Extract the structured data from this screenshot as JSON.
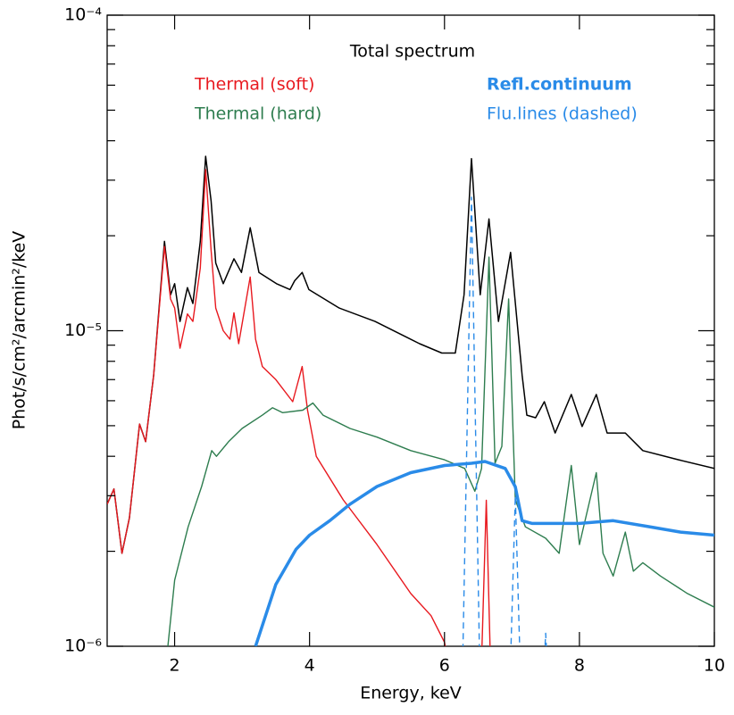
{
  "chart_data": {
    "type": "line",
    "xlabel": "Energy, keV",
    "ylabel": "Phot/s/cm²/arcmin²/keV",
    "xlim": [
      1,
      10
    ],
    "ylim": [
      1e-06,
      0.0001
    ],
    "log_y": true,
    "xticks": [
      2,
      4,
      6,
      8,
      10
    ],
    "yticks": [
      {
        "value": 1e-06,
        "label": "10⁻⁶"
      },
      {
        "value": 1e-05,
        "label": "10⁻⁵"
      },
      {
        "value": 0.0001,
        "label": "10⁻⁴"
      }
    ],
    "yminorticks": [
      2e-06,
      3e-06,
      4e-06,
      5e-06,
      6e-06,
      7e-06,
      8e-06,
      9e-06,
      2e-05,
      3e-05,
      4e-05,
      5e-05,
      6e-05,
      7e-05,
      8e-05,
      9e-05
    ],
    "series": [
      {
        "name": "Total spectrum",
        "color": "#000000",
        "width": 1.5,
        "dashed": false,
        "bold": false,
        "x": [
          1.0,
          1.1,
          1.22,
          1.33,
          1.48,
          1.57,
          1.69,
          1.85,
          1.94,
          2.0,
          2.08,
          2.19,
          2.27,
          2.38,
          2.46,
          2.54,
          2.61,
          2.72,
          2.88,
          2.99,
          3.12,
          3.25,
          3.51,
          3.71,
          3.78,
          3.89,
          3.99,
          4.44,
          4.97,
          5.37,
          5.63,
          5.96,
          6.16,
          6.29,
          6.4,
          6.53,
          6.66,
          6.8,
          6.98,
          7.15,
          7.22,
          7.35,
          7.48,
          7.64,
          7.88,
          8.04,
          8.25,
          8.41,
          8.68,
          8.94,
          9.47,
          10.0
        ],
        "values": [
          2.82e-06,
          3.15e-06,
          1.97e-06,
          2.55e-06,
          5.06e-06,
          4.45e-06,
          7.24e-06,
          1.92e-05,
          1.3e-05,
          1.41e-05,
          1.07e-05,
          1.37e-05,
          1.22e-05,
          1.92e-05,
          3.57e-05,
          2.58e-05,
          1.64e-05,
          1.41e-05,
          1.69e-05,
          1.53e-05,
          2.12e-05,
          1.53e-05,
          1.41e-05,
          1.35e-05,
          1.44e-05,
          1.53e-05,
          1.35e-05,
          1.18e-05,
          1.07e-05,
          9.7e-06,
          9.1e-06,
          8.5e-06,
          8.5e-06,
          1.3e-05,
          3.51e-05,
          1.3e-05,
          2.26e-05,
          1.07e-05,
          1.77e-05,
          7.24e-06,
          5.4e-06,
          5.3e-06,
          5.96e-06,
          4.74e-06,
          6.28e-06,
          4.97e-06,
          6.28e-06,
          4.74e-06,
          4.74e-06,
          4.17e-06,
          3.9e-06,
          3.66e-06
        ]
      },
      {
        "name": "Thermal (soft)",
        "color": "#e8191f",
        "width": 1.4,
        "dashed": false,
        "bold": false,
        "x": [
          1.0,
          1.1,
          1.22,
          1.33,
          1.48,
          1.57,
          1.69,
          1.85,
          1.94,
          2.0,
          2.08,
          2.19,
          2.27,
          2.38,
          2.46,
          2.54,
          2.61,
          2.72,
          2.82,
          2.88,
          2.95,
          3.12,
          3.2,
          3.3,
          3.5,
          3.75,
          3.89,
          3.97,
          4.1,
          4.5,
          5.0,
          5.5,
          5.8,
          6.0,
          6.05,
          6.55,
          6.62,
          6.68
        ],
        "values": [
          2.82e-06,
          3.15e-06,
          1.97e-06,
          2.55e-06,
          5.06e-06,
          4.45e-06,
          7.24e-06,
          1.85e-05,
          1.26e-05,
          1.18e-05,
          8.8e-06,
          1.13e-05,
          1.07e-05,
          1.58e-05,
          3.24e-05,
          1.8e-05,
          1.18e-05,
          1e-05,
          9.4e-06,
          1.14e-05,
          9.1e-06,
          1.48e-05,
          9.4e-06,
          7.7e-06,
          7e-06,
          5.96e-06,
          7.7e-06,
          5.6e-06,
          4e-06,
          2.91e-06,
          2.1e-06,
          1.47e-06,
          1.25e-06,
          1.03e-06,
          9e-07,
          9e-07,
          2.9e-06,
          9e-07
        ]
      },
      {
        "name": "Thermal (hard)",
        "color": "#2e7d4f",
        "width": 1.4,
        "dashed": false,
        "bold": false,
        "x": [
          1.9,
          2.0,
          2.2,
          2.4,
          2.55,
          2.62,
          2.8,
          3.0,
          3.3,
          3.45,
          3.6,
          3.9,
          4.05,
          4.2,
          4.6,
          5.0,
          5.5,
          6.0,
          6.3,
          6.45,
          6.55,
          6.66,
          6.75,
          6.85,
          6.95,
          7.05,
          7.2,
          7.5,
          7.7,
          7.88,
          8.0,
          8.25,
          8.35,
          8.5,
          8.68,
          8.8,
          8.94,
          9.2,
          9.6,
          10.0
        ],
        "values": [
          1e-06,
          1.62e-06,
          2.39e-06,
          3.21e-06,
          4.17e-06,
          4e-06,
          4.45e-06,
          4.9e-06,
          5.4e-06,
          5.7e-06,
          5.5e-06,
          5.6e-06,
          5.9e-06,
          5.4e-06,
          4.9e-06,
          4.6e-06,
          4.17e-06,
          3.9e-06,
          3.66e-06,
          3.1e-06,
          3.66e-06,
          1.71e-05,
          3.8e-06,
          4.3e-06,
          1.26e-05,
          2.91e-06,
          2.39e-06,
          2.2e-06,
          1.97e-06,
          3.74e-06,
          2.1e-06,
          3.55e-06,
          1.97e-06,
          1.67e-06,
          2.3e-06,
          1.73e-06,
          1.84e-06,
          1.67e-06,
          1.47e-06,
          1.33e-06
        ]
      },
      {
        "name": "Refl.continuum",
        "color": "#2a8be8",
        "width": 3.5,
        "dashed": false,
        "bold": true,
        "x": [
          3.2,
          3.5,
          3.8,
          4.0,
          4.3,
          4.6,
          5.0,
          5.5,
          6.0,
          6.4,
          6.6,
          6.9,
          7.05,
          7.15,
          7.3,
          8.0,
          8.5,
          9.0,
          9.5,
          10.0
        ],
        "values": [
          1e-06,
          1.57e-06,
          2.03e-06,
          2.25e-06,
          2.5e-06,
          2.82e-06,
          3.21e-06,
          3.55e-06,
          3.74e-06,
          3.8e-06,
          3.85e-06,
          3.66e-06,
          3.2e-06,
          2.5e-06,
          2.45e-06,
          2.45e-06,
          2.5e-06,
          2.4e-06,
          2.3e-06,
          2.25e-06
        ]
      },
      {
        "name": "Flu.lines (dashed)",
        "color": "#2a8be8",
        "width": 1.4,
        "dashed": true,
        "bold": false,
        "x": [
          6.27,
          6.4,
          6.52,
          6.98,
          7.05,
          7.12,
          7.48,
          7.5,
          7.52
        ],
        "values": [
          9e-07,
          2.65e-05,
          9e-07,
          9e-07,
          3e-06,
          9e-07,
          9e-07,
          1.1e-06,
          9e-07
        ]
      }
    ]
  }
}
